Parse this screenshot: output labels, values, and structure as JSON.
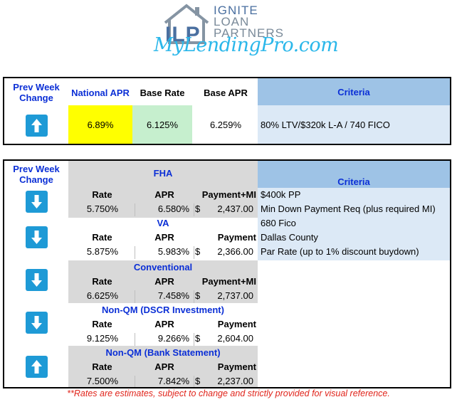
{
  "logo": {
    "initials": "ILP",
    "brand_line1": "IGNITE",
    "brand_line2": "LOAN",
    "brand_line3": "PARTNERS",
    "tagline": "MyLendingPro.com",
    "colors": {
      "house": "#7a8a99",
      "tagline": "#2bb7ea"
    }
  },
  "summary": {
    "headers": {
      "prev_week": "Prev Week Change",
      "national_apr": "National APR",
      "base_rate": "Base Rate",
      "base_apr": "Base APR",
      "criteria": "Criteria"
    },
    "prev_week_icon": "arrow-up-icon",
    "national_apr": "6.89%",
    "base_rate": "6.125%",
    "base_apr": "6.259%",
    "criteria": "80% LTV/$320k L-A / 740 FICO",
    "colors": {
      "national_apr_bg": "#ffff00",
      "base_rate_bg": "#c6efce",
      "criteria_bg": "#dce9f6",
      "criteria_header_bg": "#9ec3e6"
    }
  },
  "programs": {
    "prev_week_header": "Prev Week Change",
    "criteria_header": "Criteria",
    "rows": [
      {
        "name": "FHA",
        "icon": "arrow-down-icon",
        "col1": "Rate",
        "col2": "APR",
        "col3": "Payment+MI",
        "rate": "5.750%",
        "apr": "6.580%",
        "dollar": "$",
        "payment": "2,437.00"
      },
      {
        "name": "VA",
        "icon": "arrow-down-icon",
        "col1": "Rate",
        "col2": "APR",
        "col3": "Payment",
        "rate": "5.875%",
        "apr": "5.983%",
        "dollar": "$",
        "payment": "2,366.00"
      },
      {
        "name": "Conventional",
        "icon": "arrow-down-icon",
        "col1": "Rate",
        "col2": "APR",
        "col3": "Payment+MI",
        "rate": "6.625%",
        "apr": "7.458%",
        "dollar": "$",
        "payment": "2,737.00"
      },
      {
        "name": "Non-QM (DSCR Investment)",
        "icon": "arrow-down-icon",
        "col1": "Rate",
        "col2": "APR",
        "col3": "Payment",
        "rate": "9.125%",
        "apr": "9.266%",
        "dollar": "$",
        "payment": "2,604.00"
      },
      {
        "name": "Non-QM (Bank Statement)",
        "icon": "arrow-up-icon",
        "col1": "Rate",
        "col2": "APR",
        "col3": "Payment",
        "rate": "7.500%",
        "apr": "7.842%",
        "dollar": "$",
        "payment": "2,237.00"
      }
    ],
    "criteria_lines": [
      "$400k PP",
      "Min Down Payment Req (plus required MI)",
      "680 Fico",
      "Dallas County",
      "Par Rate (up to 1% discount buydown)"
    ],
    "colors": {
      "section_bg": "#d9d9d9",
      "title_blue": "#0b2fd6",
      "arrow_bg": "#1e9ad6"
    }
  },
  "footer": "**Rates are estimates, subject to change and strictly provided for visual reference."
}
